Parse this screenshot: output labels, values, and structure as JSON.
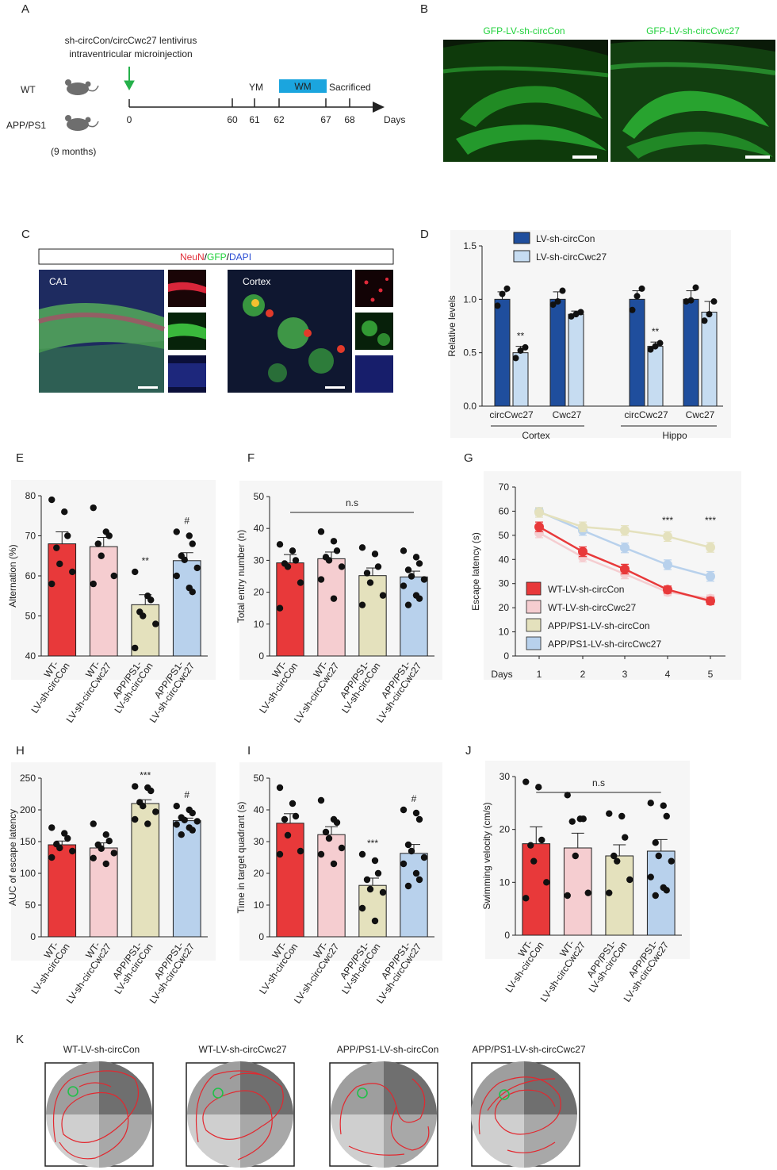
{
  "panel_letters": {
    "A": "A",
    "B": "B",
    "C": "C",
    "D": "D",
    "E": "E",
    "F": "F",
    "G": "G",
    "H": "H",
    "I": "I",
    "J": "J",
    "K": "K"
  },
  "colors": {
    "wt_con": "#e8393a",
    "wt_cwc": "#f5cdd0",
    "app_con": "#e4e1bd",
    "app_cwc": "#b8d1ec",
    "d_con": "#1f4e9d",
    "d_cwc": "#c6dcf1",
    "gfp": "#1fd13a",
    "neun": "#e0303a",
    "dapi": "#2a4cd4",
    "track": "#e2282f",
    "timeline_arrow": "#25b04a",
    "wm_box": "#1ba5de"
  },
  "panelA": {
    "title_line1": "sh-circCon/circCwc27 lentivirus",
    "title_line2": "intraventricular microinjection",
    "groups": [
      "WT",
      "APP/PS1"
    ],
    "age": "(9 months)",
    "ticks": [
      "0",
      "60",
      "61",
      "62",
      "67",
      "68"
    ],
    "tick_days": [
      0,
      60,
      61,
      62,
      67,
      68
    ],
    "labels": {
      "ym": "YM",
      "wm": "WM",
      "sacrificed": "Sacrificed",
      "days": "Days"
    }
  },
  "panelB": {
    "left_title": "GFP-LV-sh-circCon",
    "right_title": "GFP-LV-sh-circCwc27"
  },
  "panelC": {
    "legend_neun": "NeuN",
    "legend_gfp": "GFP",
    "legend_dapi": "DAPI",
    "sep": "/",
    "left_label": "CA1",
    "right_label": "Cortex"
  },
  "chart_data": [
    {
      "id": "D",
      "type": "bar",
      "ylabel": "Relative levels",
      "ylim": [
        0,
        1.5
      ],
      "yticks": [
        "0.0",
        "0.5",
        "1.0",
        "1.5"
      ],
      "legend": [
        "LV-sh-circCon",
        "LV-sh-circCwc27"
      ],
      "categories": [
        "circCwc27",
        "Cwc27",
        "circCwc27",
        "Cwc27"
      ],
      "regions": [
        "Cortex",
        "Hippo"
      ],
      "series": [
        {
          "name": "LV-sh-circCon",
          "values": [
            1.0,
            1.0,
            1.0,
            1.0
          ],
          "sem": [
            0.07,
            0.07,
            0.08,
            0.08
          ],
          "points": [
            [
              0.94,
              1.05,
              1.1
            ],
            [
              0.95,
              0.98,
              1.08
            ],
            [
              0.9,
              1.03,
              1.1
            ],
            [
              0.98,
              0.99,
              1.11
            ]
          ]
        },
        {
          "name": "LV-sh-circCwc27",
          "values": [
            0.5,
            0.86,
            0.56,
            0.88
          ],
          "sem": [
            0.06,
            0.03,
            0.04,
            0.1
          ],
          "points": [
            [
              0.45,
              0.52,
              0.55
            ],
            [
              0.84,
              0.86,
              0.88
            ],
            [
              0.53,
              0.56,
              0.59
            ],
            [
              0.8,
              0.86,
              0.98
            ]
          ]
        }
      ],
      "annotations": [
        "**",
        "",
        "**",
        ""
      ]
    },
    {
      "id": "E",
      "type": "bar",
      "ylabel": "Alternation (%)",
      "ylim": [
        40,
        80
      ],
      "yticks": [
        "40",
        "50",
        "60",
        "70",
        "80"
      ],
      "categories": [
        "WT-\nLV-sh-circCon",
        "WT-\nLV-sh-circCwc27",
        "APP/PS1-\nLV-sh-circCon",
        "APP/PS1-\nLV-sh-circCwc27"
      ],
      "values": [
        68,
        67.3,
        52.8,
        63.8
      ],
      "sem": [
        3,
        2.3,
        2.5,
        2
      ],
      "points": [
        [
          79,
          76,
          70,
          67,
          63,
          61,
          58
        ],
        [
          77,
          71,
          70,
          68,
          65,
          60,
          58
        ],
        [
          61,
          55,
          54,
          51,
          50,
          48,
          42
        ],
        [
          71,
          70,
          68,
          65,
          64,
          62,
          60,
          57,
          56
        ]
      ],
      "annotations": [
        "",
        "",
        "**",
        "#"
      ]
    },
    {
      "id": "F",
      "type": "bar",
      "ylabel": "Total entry number (n)",
      "ylim": [
        0,
        50
      ],
      "yticks": [
        "0",
        "10",
        "20",
        "30",
        "40",
        "50"
      ],
      "categories": [
        "WT-\nLV-sh-circCon",
        "WT-\nLV-sh-circCwc27",
        "APP/PS1-\nLV-sh-circCon",
        "APP/PS1-\nLV-sh-circCwc27"
      ],
      "values": [
        29.2,
        30.5,
        25.2,
        24.8
      ],
      "sem": [
        2.6,
        2.1,
        2.4,
        1.8
      ],
      "points": [
        [
          35,
          33,
          30,
          29,
          28,
          23,
          15
        ],
        [
          39,
          36,
          33,
          31,
          30,
          28,
          24,
          18
        ],
        [
          34,
          32,
          28,
          26,
          23,
          19,
          16
        ],
        [
          33,
          31,
          29,
          27,
          25,
          24,
          22,
          19,
          18,
          16
        ]
      ],
      "annotations": [
        "",
        "",
        "",
        ""
      ],
      "group_note": "n.s"
    },
    {
      "id": "G",
      "type": "line",
      "ylabel": "Escape latency (s)",
      "xlabel": "Days",
      "ylim": [
        0,
        70
      ],
      "yticks": [
        "0",
        "10",
        "20",
        "30",
        "40",
        "50",
        "60",
        "70"
      ],
      "x": [
        1,
        2,
        3,
        4,
        5
      ],
      "xticks": [
        "1",
        "2",
        "3",
        "4",
        "5"
      ],
      "series": [
        {
          "name": "WT-LV-sh-circCon",
          "values": [
            53.5,
            43.2,
            36,
            27.5,
            22.8
          ],
          "sem": [
            2,
            2,
            2,
            1.5,
            1.5
          ]
        },
        {
          "name": "WT-LV-sh-circCwc27",
          "values": [
            51,
            41,
            34,
            26.5,
            23.8
          ],
          "sem": [
            2,
            2,
            2,
            1.5,
            1.5
          ]
        },
        {
          "name": "APP/PS1-LV-sh-circCon",
          "values": [
            59.5,
            53.5,
            52,
            49.5,
            45
          ],
          "sem": [
            2,
            2,
            2,
            2,
            2
          ]
        },
        {
          "name": "APP/PS1-LV-sh-circCwc27",
          "values": [
            59.8,
            52,
            44.8,
            37.8,
            33
          ],
          "sem": [
            1.5,
            2,
            2,
            2,
            2
          ]
        }
      ],
      "annotations": [
        {
          "x": 4,
          "text": "***"
        },
        {
          "x": 5,
          "text": "***"
        }
      ]
    },
    {
      "id": "H",
      "type": "bar",
      "ylabel": "AUC of escape latency",
      "ylim": [
        0,
        250
      ],
      "yticks": [
        "0",
        "50",
        "100",
        "150",
        "200",
        "250"
      ],
      "categories": [
        "WT-\nLV-sh-circCon",
        "WT-\nLV-sh-circCwc27",
        "APP/PS1-\nLV-sh-circCon",
        "APP/PS1-\nLV-sh-circCwc27"
      ],
      "values": [
        145,
        140,
        210,
        183
      ],
      "sem": [
        6,
        8,
        6,
        4
      ],
      "points": [
        [
          172,
          163,
          155,
          146,
          140,
          135,
          125
        ],
        [
          178,
          161,
          151,
          145,
          139,
          132,
          124,
          115
        ],
        [
          237,
          235,
          230,
          212,
          206,
          197,
          185,
          178
        ],
        [
          206,
          200,
          195,
          188,
          184,
          182,
          177,
          172,
          168,
          161
        ]
      ],
      "annotations": [
        "",
        "",
        "***",
        "#"
      ]
    },
    {
      "id": "I",
      "type": "bar",
      "ylabel": "Time in target quadrant (s)",
      "ylim": [
        0,
        50
      ],
      "yticks": [
        "0",
        "10",
        "20",
        "30",
        "40",
        "50"
      ],
      "categories": [
        "WT-\nLV-sh-circCon",
        "WT-\nLV-sh-circCwc27",
        "APP/PS1-\nLV-sh-circCon",
        "APP/PS1-\nLV-sh-circCwc27"
      ],
      "values": [
        35.8,
        32.2,
        16.2,
        26.3
      ],
      "sem": [
        3,
        2.5,
        2.3,
        2.8
      ],
      "points": [
        [
          47,
          42,
          38,
          37,
          32,
          27,
          26
        ],
        [
          43,
          37,
          36,
          33,
          31,
          28,
          26,
          23
        ],
        [
          26,
          24,
          20,
          18,
          15,
          14,
          9,
          5
        ],
        [
          40,
          39,
          37,
          29,
          27,
          25,
          23,
          20,
          18,
          16
        ]
      ],
      "annotations": [
        "",
        "",
        "***",
        "#"
      ]
    },
    {
      "id": "J",
      "type": "bar",
      "ylabel": "Swimming velocity (cm/s)",
      "ylim": [
        0,
        30
      ],
      "yticks": [
        "0",
        "10",
        "20",
        "30"
      ],
      "categories": [
        "WT-\nLV-sh-circCon",
        "WT-\nLV-sh-circCwc27",
        "APP/PS1-\nLV-sh-circCon",
        "APP/PS1-\nLV-sh-circCwc27"
      ],
      "values": [
        17.3,
        16.5,
        15.0,
        15.9
      ],
      "sem": [
        3.2,
        2.8,
        2.1,
        2.2
      ],
      "points": [
        [
          29,
          28,
          18,
          17,
          14,
          10,
          7
        ],
        [
          26.5,
          22,
          22,
          21.5,
          15,
          8,
          7.5
        ],
        [
          23,
          22.5,
          18.5,
          15,
          14,
          10.5,
          8
        ],
        [
          25,
          24.5,
          22.5,
          17.5,
          15,
          14,
          11,
          9,
          8.5,
          7.5
        ]
      ],
      "annotations": [
        "",
        "",
        "",
        ""
      ],
      "group_note": "n.s"
    }
  ],
  "panelK": {
    "titles": [
      "WT-LV-sh-circCon",
      "WT-LV-sh-circCwc27",
      "APP/PS1-LV-sh-circCon",
      "APP/PS1-LV-sh-circCwc27"
    ]
  }
}
